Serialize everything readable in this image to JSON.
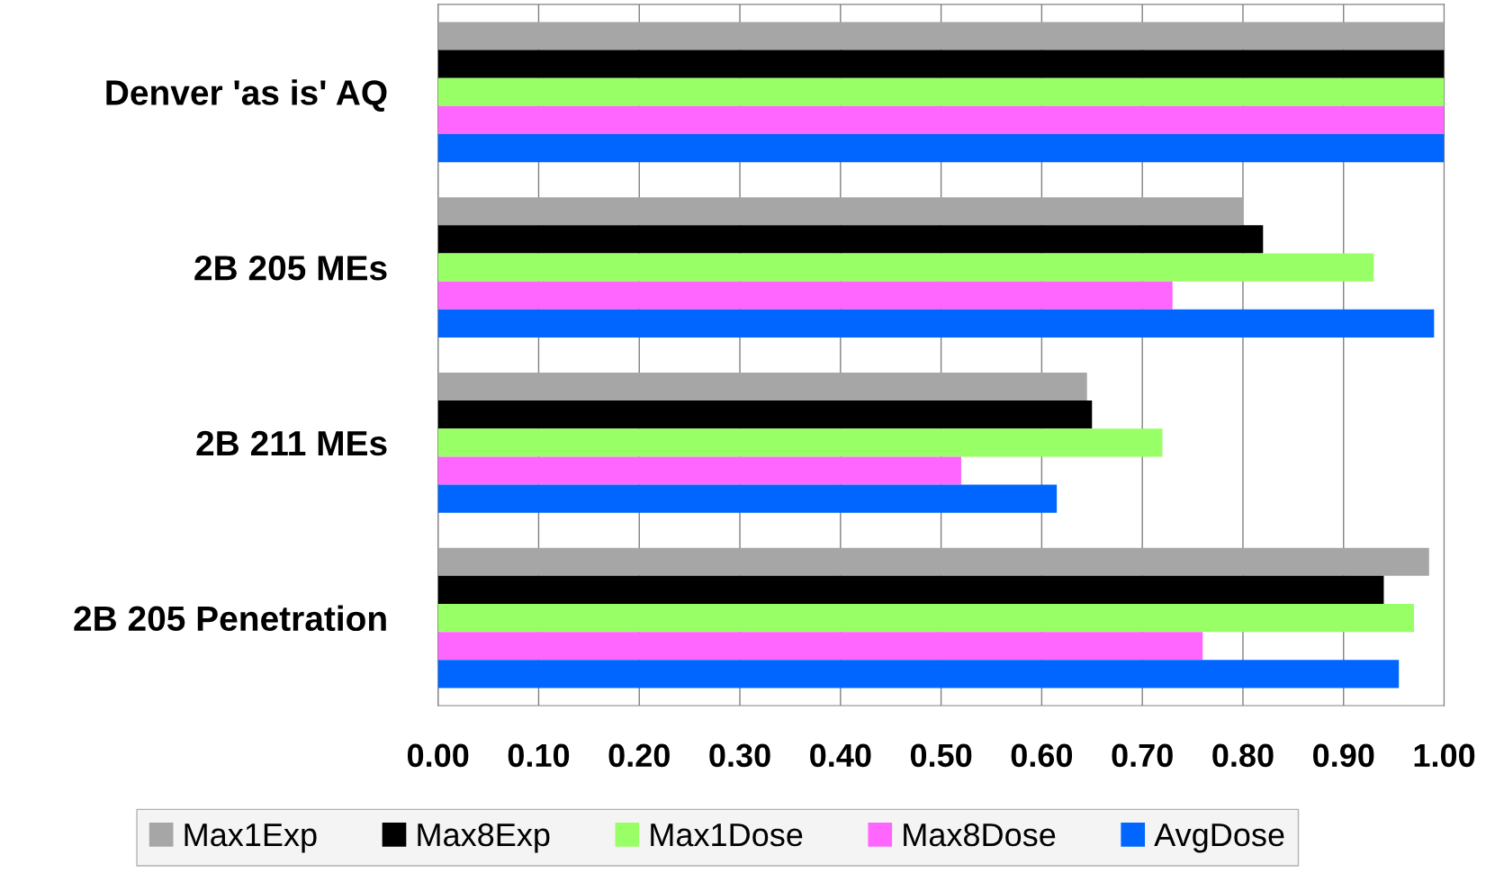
{
  "chart_data": {
    "type": "bar",
    "orientation": "horizontal",
    "categories": [
      "Denver 'as is' AQ",
      "2B 205 MEs",
      "2B 211 MEs",
      "2B 205 Penetration"
    ],
    "series": [
      {
        "name": "Max1Exp",
        "color": "#a6a6a6",
        "values": [
          1.0,
          0.8,
          0.645,
          0.985
        ]
      },
      {
        "name": "Max8Exp",
        "color": "#000000",
        "values": [
          1.0,
          0.82,
          0.65,
          0.94
        ]
      },
      {
        "name": "Max1Dose",
        "color": "#99ff66",
        "values": [
          1.0,
          0.93,
          0.72,
          0.97
        ]
      },
      {
        "name": "Max8Dose",
        "color": "#ff66ff",
        "values": [
          1.0,
          0.73,
          0.52,
          0.76
        ]
      },
      {
        "name": "AvgDose",
        "color": "#0066ff",
        "values": [
          1.0,
          0.99,
          0.615,
          0.955
        ]
      }
    ],
    "xlim": [
      0,
      1
    ],
    "xticks": [
      {
        "value": 0,
        "label": "0.00"
      },
      {
        "value": 0.1,
        "label": "0.10"
      },
      {
        "value": 0.2,
        "label": "0.20"
      },
      {
        "value": 0.3,
        "label": "0.30"
      },
      {
        "value": 0.4,
        "label": "0.40"
      },
      {
        "value": 0.5,
        "label": "0.50"
      },
      {
        "value": 0.6,
        "label": "0.60"
      },
      {
        "value": 0.7,
        "label": "0.70"
      },
      {
        "value": 0.8,
        "label": "0.80"
      },
      {
        "value": 0.9,
        "label": "0.90"
      },
      {
        "value": 1.0,
        "label": "1.00"
      }
    ],
    "grid": "x",
    "legend": "bottom"
  }
}
